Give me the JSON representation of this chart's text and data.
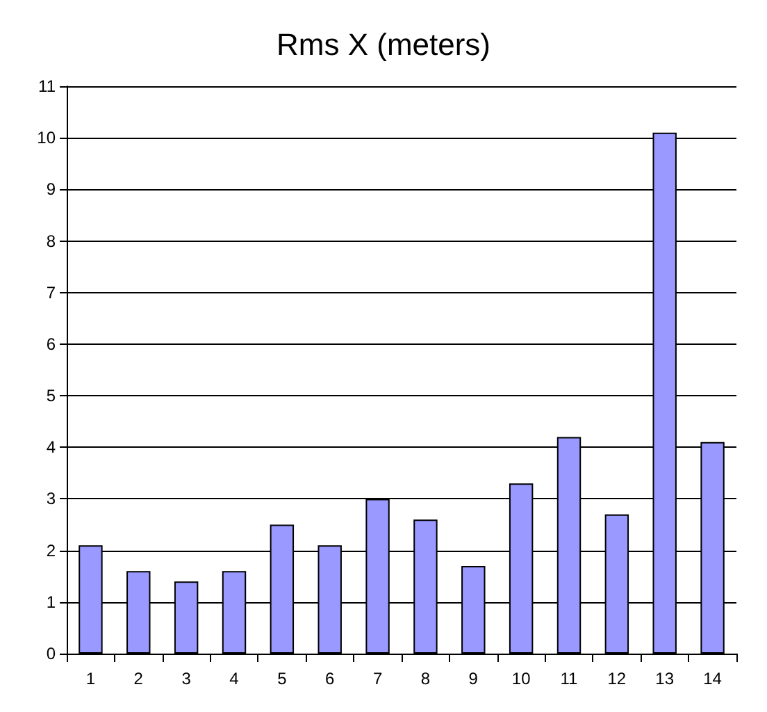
{
  "chart_data": {
    "type": "bar",
    "title": "Rms X (meters)",
    "categories": [
      "1",
      "2",
      "3",
      "4",
      "5",
      "6",
      "7",
      "8",
      "9",
      "10",
      "11",
      "12",
      "13",
      "14"
    ],
    "values": [
      2.1,
      1.6,
      1.4,
      1.6,
      2.5,
      2.1,
      3.0,
      2.6,
      1.7,
      3.3,
      4.2,
      2.7,
      10.1,
      4.1
    ],
    "color": "#9999ff",
    "ylim": [
      0,
      11
    ],
    "yticks": [
      0,
      1,
      2,
      3,
      4,
      5,
      6,
      7,
      8,
      9,
      10,
      11
    ],
    "grid": "y"
  }
}
